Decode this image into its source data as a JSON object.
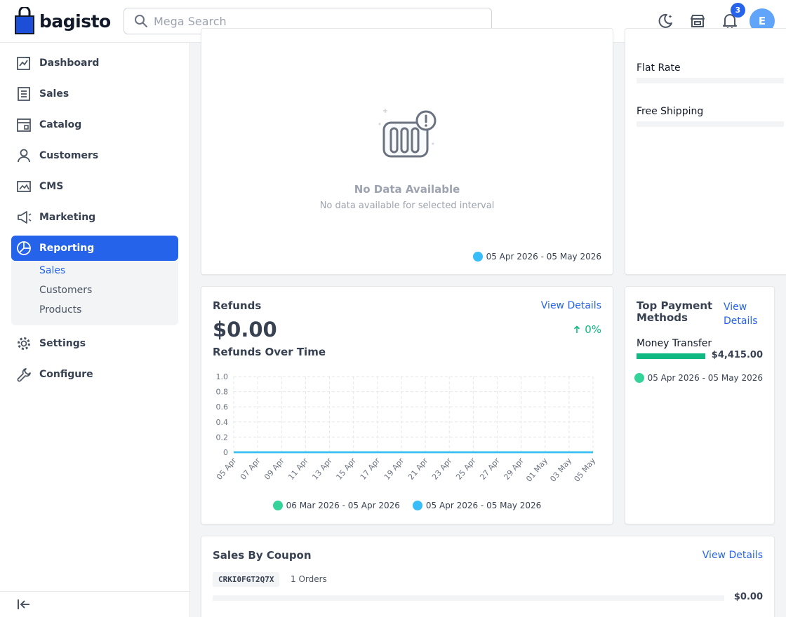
{
  "header": {
    "brand": "bagisto",
    "search_placeholder": "Mega Search",
    "notification_count": "3",
    "avatar_initial": "E"
  },
  "sidebar": {
    "items": [
      {
        "label": "Dashboard",
        "icon": "dashboard-icon"
      },
      {
        "label": "Sales",
        "icon": "sales-icon"
      },
      {
        "label": "Catalog",
        "icon": "catalog-icon"
      },
      {
        "label": "Customers",
        "icon": "customers-icon"
      },
      {
        "label": "CMS",
        "icon": "cms-icon"
      },
      {
        "label": "Marketing",
        "icon": "marketing-icon"
      },
      {
        "label": "Reporting",
        "icon": "reporting-icon"
      },
      {
        "label": "Settings",
        "icon": "settings-icon"
      },
      {
        "label": "Configure",
        "icon": "configure-icon"
      }
    ],
    "reporting_sub": [
      "Sales",
      "Customers",
      "Products"
    ]
  },
  "no_data_card": {
    "title": "No Data Available",
    "subtitle": "No data available for selected interval",
    "legend": "05 Apr 2026 - 05 May 2026"
  },
  "shipping_card": {
    "items": [
      "Flat Rate",
      "Free Shipping"
    ]
  },
  "refunds_card": {
    "title": "Refunds",
    "view_details": "View Details",
    "amount": "$0.00",
    "change": "0%",
    "chart_title": "Refunds Over Time"
  },
  "payment_card": {
    "title_line1": "Top Payment",
    "title_line2": "Methods",
    "view_line1": "View",
    "view_line2": "Details",
    "method": "Money Transfer",
    "amount": "$4,415.00",
    "method_share": 1,
    "legend": "05 Apr 2026 - 05 May 2026"
  },
  "coupon_card": {
    "title": "Sales By Coupon",
    "view_details": "View Details",
    "code": "CRKI0FGT2Q7X",
    "orders": "1 Orders",
    "amount": "$0.00"
  },
  "colors": {
    "accent": "#2563eb",
    "previous_series": "#34d399",
    "current_series": "#38bdf8",
    "payment_bar": "#10b981"
  },
  "chart_data": {
    "type": "line",
    "x": [
      "05 Apr",
      "07 Apr",
      "09 Apr",
      "11 Apr",
      "13 Apr",
      "15 Apr",
      "17 Apr",
      "19 Apr",
      "21 Apr",
      "23 Apr",
      "25 Apr",
      "27 Apr",
      "29 Apr",
      "01 May",
      "03 May",
      "05 May"
    ],
    "series": [
      {
        "name": "06 Mar 2026 - 05 Apr 2026",
        "values": [
          0,
          0,
          0,
          0,
          0,
          0,
          0,
          0,
          0,
          0,
          0,
          0,
          0,
          0,
          0,
          0
        ]
      },
      {
        "name": "05 Apr 2026 - 05 May 2026",
        "values": [
          0,
          0,
          0,
          0,
          0,
          0,
          0,
          0,
          0,
          0,
          0,
          0,
          0,
          0,
          0,
          0
        ]
      }
    ],
    "y_ticks": [
      "1.0",
      "0.8",
      "0.6",
      "0.4",
      "0.2",
      "0"
    ],
    "ylim": [
      0,
      1
    ],
    "grid": true,
    "legend_position": "bottom",
    "title": "Refunds Over Time",
    "xlabel": "",
    "ylabel": ""
  }
}
